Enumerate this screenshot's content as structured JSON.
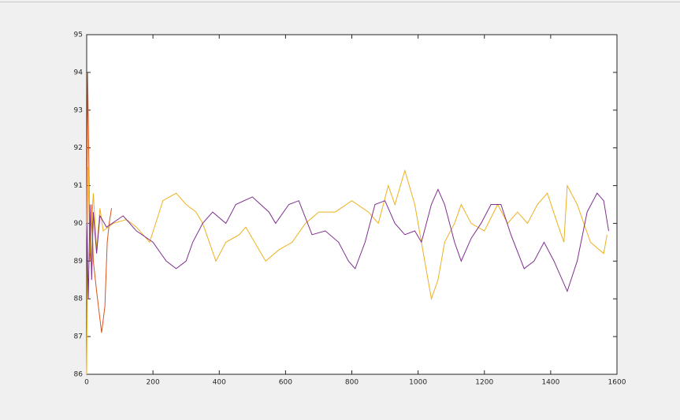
{
  "chart_data": {
    "type": "line",
    "series": [
      {
        "color": "#D95319",
        "x": [
          0,
          3,
          6,
          10,
          15,
          20,
          30,
          45,
          55,
          62,
          68,
          75
        ],
        "values": [
          90,
          94,
          92,
          89,
          90.5,
          89,
          88.2,
          87.1,
          87.8,
          89.5,
          90,
          90.4
        ]
      },
      {
        "color": "#EDB120",
        "x": [
          0,
          5,
          10,
          20,
          30,
          40,
          50,
          80,
          120,
          150,
          190,
          230,
          270,
          300,
          330,
          350,
          390,
          420,
          460,
          480,
          540,
          580,
          620,
          660,
          700,
          750,
          800,
          850,
          880,
          910,
          930,
          960,
          990,
          1020,
          1040,
          1060,
          1080,
          1110,
          1130,
          1160,
          1200,
          1240,
          1270,
          1300,
          1330,
          1360,
          1390,
          1420,
          1440,
          1450,
          1480,
          1520,
          1560,
          1570
        ],
        "values": [
          86,
          91.5,
          89.2,
          90.8,
          89.3,
          90.4,
          89.8,
          90,
          90.1,
          89.9,
          89.5,
          90.6,
          90.8,
          90.5,
          90.3,
          90,
          89,
          89.5,
          89.7,
          89.9,
          89,
          89.3,
          89.5,
          90,
          90.3,
          90.3,
          90.6,
          90.3,
          90,
          91,
          90.5,
          91.4,
          90.5,
          89,
          88,
          88.5,
          89.5,
          90,
          90.5,
          90,
          89.8,
          90.5,
          90,
          90.3,
          90,
          90.5,
          90.8,
          90,
          89.5,
          91,
          90.5,
          89.5,
          89.2,
          89.7
        ]
      },
      {
        "color": "#7E2F8E",
        "x": [
          0,
          5,
          10,
          15,
          20,
          30,
          40,
          60,
          110,
          150,
          200,
          240,
          270,
          300,
          320,
          350,
          380,
          420,
          450,
          500,
          550,
          570,
          610,
          640,
          680,
          720,
          760,
          790,
          810,
          840,
          870,
          900,
          930,
          960,
          990,
          1010,
          1040,
          1060,
          1080,
          1110,
          1130,
          1160,
          1190,
          1220,
          1250,
          1280,
          1320,
          1350,
          1380,
          1410,
          1450,
          1480,
          1510,
          1540,
          1560,
          1575
        ],
        "values": [
          90,
          88,
          90.5,
          88.5,
          90.3,
          89.2,
          90.2,
          89.9,
          90.2,
          89.8,
          89.5,
          89,
          88.8,
          89,
          89.5,
          90,
          90.3,
          90,
          90.5,
          90.7,
          90.3,
          90,
          90.5,
          90.6,
          89.7,
          89.8,
          89.5,
          89,
          88.8,
          89.5,
          90.5,
          90.6,
          90,
          89.7,
          89.8,
          89.5,
          90.5,
          90.9,
          90.5,
          89.5,
          89,
          89.6,
          90,
          90.5,
          90.5,
          89.7,
          88.8,
          89,
          89.5,
          89,
          88.2,
          89,
          90.3,
          90.8,
          90.6,
          89.8
        ]
      }
    ],
    "xlim": [
      0,
      1600
    ],
    "xticks": [
      0,
      200,
      400,
      600,
      800,
      1000,
      1200,
      1400,
      1600
    ],
    "ylim": [
      86,
      95
    ],
    "yticks": [
      86,
      87,
      88,
      89,
      90,
      91,
      92,
      93,
      94,
      95
    ]
  }
}
